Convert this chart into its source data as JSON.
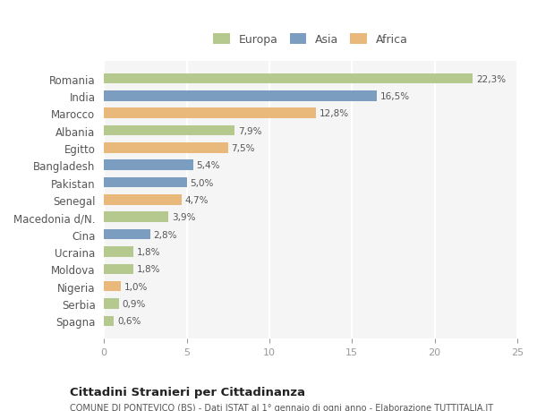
{
  "countries": [
    "Romania",
    "India",
    "Marocco",
    "Albania",
    "Egitto",
    "Bangladesh",
    "Pakistan",
    "Senegal",
    "Macedonia d/N.",
    "Cina",
    "Ucraina",
    "Moldova",
    "Nigeria",
    "Serbia",
    "Spagna"
  ],
  "values": [
    22.3,
    16.5,
    12.8,
    7.9,
    7.5,
    5.4,
    5.0,
    4.7,
    3.9,
    2.8,
    1.8,
    1.8,
    1.0,
    0.9,
    0.6
  ],
  "labels": [
    "22,3%",
    "16,5%",
    "12,8%",
    "7,9%",
    "7,5%",
    "5,4%",
    "5,0%",
    "4,7%",
    "3,9%",
    "2,8%",
    "1,8%",
    "1,8%",
    "1,0%",
    "0,9%",
    "0,6%"
  ],
  "continents": [
    "Europa",
    "Asia",
    "Africa",
    "Europa",
    "Africa",
    "Asia",
    "Asia",
    "Africa",
    "Europa",
    "Asia",
    "Europa",
    "Europa",
    "Africa",
    "Europa",
    "Europa"
  ],
  "colors": {
    "Europa": "#b5c98e",
    "Asia": "#7b9dc0",
    "Africa": "#e8b97a"
  },
  "legend_order": [
    "Europa",
    "Asia",
    "Africa"
  ],
  "title": "Cittadini Stranieri per Cittadinanza",
  "subtitle": "COMUNE DI PONTEVICO (BS) - Dati ISTAT al 1° gennaio di ogni anno - Elaborazione TUTTITALIA.IT",
  "xlim": [
    0,
    25
  ],
  "xticks": [
    0,
    5,
    10,
    15,
    20,
    25
  ],
  "bg_color": "#ffffff",
  "plot_bg_color": "#f5f5f5",
  "grid_color": "#ffffff",
  "bar_height": 0.6
}
